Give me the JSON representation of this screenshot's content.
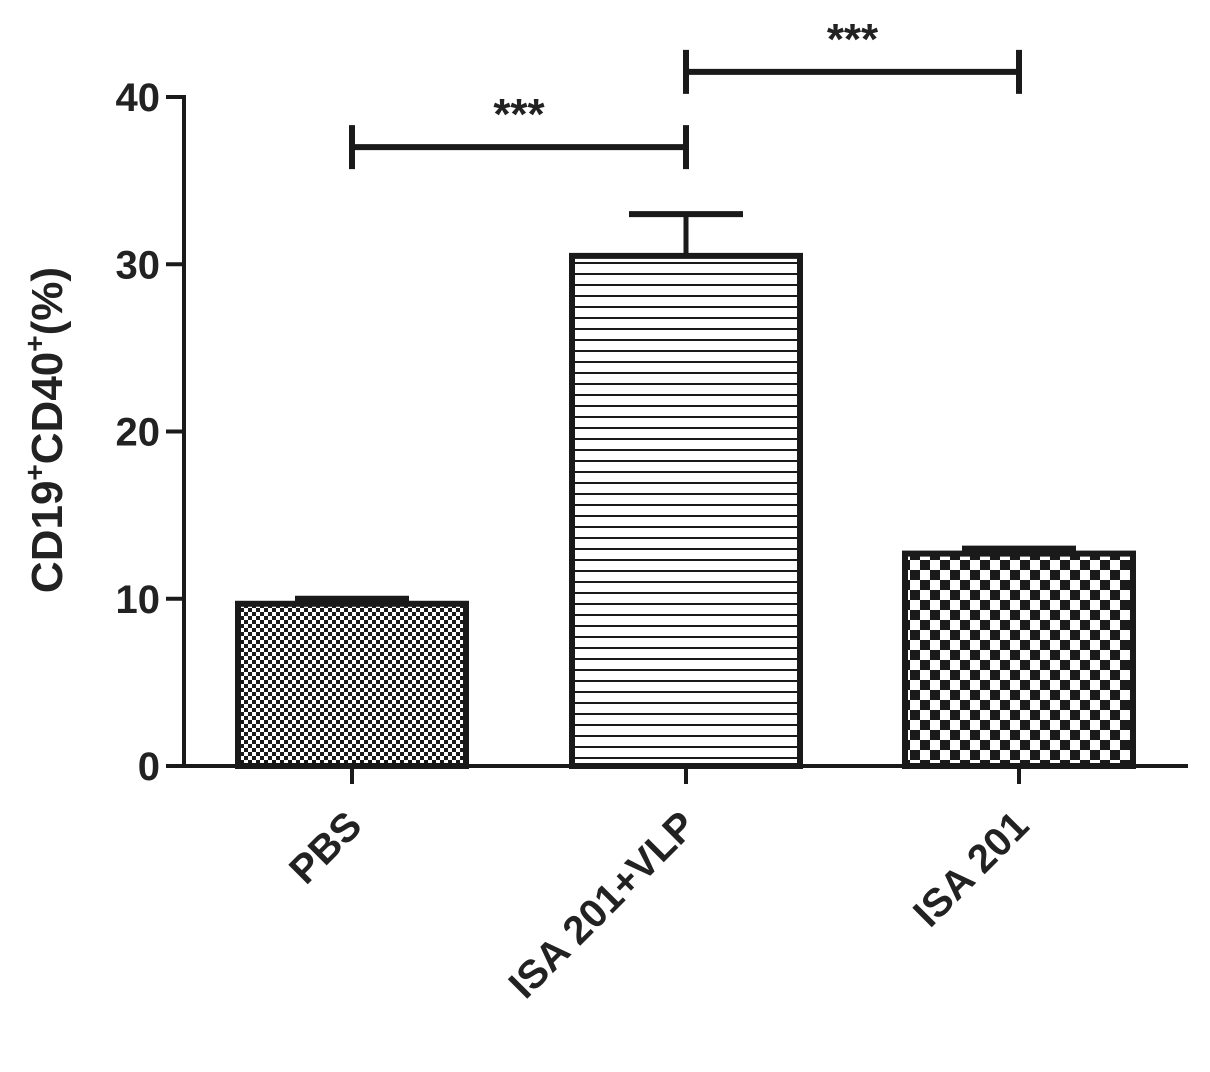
{
  "chart_data": {
    "type": "bar",
    "categories": [
      "PBS",
      "ISA 201+VLP",
      "ISA 201"
    ],
    "values": [
      9.7,
      30.5,
      12.7
    ],
    "errors": [
      0.3,
      2.5,
      0.3
    ],
    "ylabel": {
      "main": "CD19",
      "sup1": "+",
      "mid": "CD40",
      "sup2": "+",
      "tail": "(%)"
    },
    "yticks": [
      0,
      10,
      20,
      30,
      40
    ],
    "ylim": [
      0,
      40
    ],
    "significance": [
      {
        "from": 0,
        "to": 1,
        "level": 37,
        "label": "***"
      },
      {
        "from": 1,
        "to": 2,
        "level": 41.5,
        "label": "***"
      }
    ],
    "patterns": [
      "fine-checker",
      "horizontal-lines",
      "coarse-checker"
    ],
    "colors": {
      "ink": "#1a1a1a",
      "fill": "#ffffff"
    },
    "grid": false
  }
}
